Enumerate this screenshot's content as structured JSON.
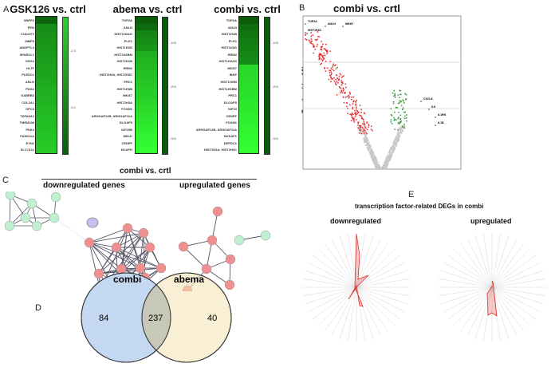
{
  "panels": {
    "a": "A",
    "b": "B",
    "c": "C",
    "d": "D",
    "e": "E"
  },
  "heatmaps": [
    {
      "title": "GSK126 vs. ctrl",
      "ticks": [
        "-2.5",
        "-5.0"
      ],
      "genes": [
        "SNPP2",
        "PEN",
        "C16orf72",
        "MMP9",
        "ANGPTL4",
        "SPARCL1",
        "DSG3",
        "HLTF",
        "PLEDC1",
        "ANLN",
        "PDG2",
        "GABRB3",
        "COL2A1",
        "GPC3",
        "TSPAN12",
        "TMEM158",
        "PDK4",
        "FAM211A",
        "EYN2",
        "SLC7A11"
      ],
      "levels": [
        0.05,
        0.3,
        0.32,
        0.34,
        0.36,
        0.38,
        0.4,
        0.42,
        0.44,
        0.46,
        0.5,
        0.52,
        0.54,
        0.56,
        0.58,
        0.6,
        0.62,
        0.64,
        0.66,
        0.68
      ]
    },
    {
      "title": "abema vs. ctrl",
      "ticks": [
        "-100",
        "-200",
        "-300"
      ],
      "genes": [
        "TOP2A",
        "ANLN",
        "HIST1H2AG",
        "PLK1",
        "HIST1H3G",
        "HIST1H2BM",
        "HIST1H1B",
        "RRM2",
        "HIST2H3A; HIST2H3C",
        "PRC1",
        "HIST1H3B",
        "MKI67",
        "HIST2H3A",
        "FOXM1",
        "ARHGAP11B; ARHGAP11A",
        "DLGAP5",
        "KIF20B",
        "MELK",
        "CENPF",
        "NCAPH"
      ],
      "levels": [
        0.0,
        0.08,
        0.25,
        0.3,
        0.35,
        0.5,
        0.55,
        0.58,
        0.62,
        0.65,
        0.68,
        0.7,
        0.74,
        0.78,
        0.82,
        0.85,
        0.88,
        0.92,
        0.96,
        1.0
      ]
    },
    {
      "title": "combi vs. ctrl",
      "ticks": [
        "-100",
        "-200",
        "-300"
      ],
      "genes": [
        "TOP2A",
        "ANLN",
        "HIST1H1B",
        "PLK1",
        "HIST1H3G",
        "RRM2",
        "HIST1H2AG",
        "MKI67",
        "IBSP",
        "HIST1H2BI",
        "HIST1H2BM",
        "PRC1",
        "DLGAP5",
        "KIF23",
        "CENPF",
        "FOXM1",
        "ARHGAP11B; ARHGAP11A",
        "NUSAP1",
        "DEPDC1",
        "HIST2H3A; HIST2H3C"
      ],
      "levels": [
        0.0,
        0.1,
        0.15,
        0.2,
        0.22,
        0.25,
        0.28,
        0.75,
        0.77,
        0.79,
        0.81,
        0.83,
        0.85,
        0.87,
        0.89,
        0.91,
        0.93,
        0.95,
        0.97,
        1.0
      ]
    }
  ],
  "colors": {
    "dark_green": "#0b5d0b",
    "bright_green": "#33ff33",
    "down_red": "#e03030",
    "up_green": "#3a9a3a",
    "ns_gray": "#c8c8c8",
    "venn_blue": "#c5d8f2",
    "venn_yellow": "#f3e2b3",
    "node_red": "#ef8f8f",
    "node_green": "#bff0cf",
    "node_purple": "#c9bff0"
  },
  "volcano": {
    "title": "combi vs. crtl",
    "ylabel": "P value (-log10)",
    "labels": [
      "TOP2A",
      "ANLN",
      "MKI67",
      "HIST1H1D",
      "CXCL8",
      "IL6",
      "IL1RN",
      "IL1B"
    ]
  },
  "network": {
    "title": "combi vs. crtl",
    "down": "downregulated genes",
    "up": "upregulated genes"
  },
  "venn": {
    "left": "combi",
    "right": "abema",
    "left_only": "84",
    "both": "237",
    "right_only": "40"
  },
  "radar": {
    "title": "transcription factor-related DEGs in combi",
    "down": "downregulated",
    "up": "upregulated"
  }
}
